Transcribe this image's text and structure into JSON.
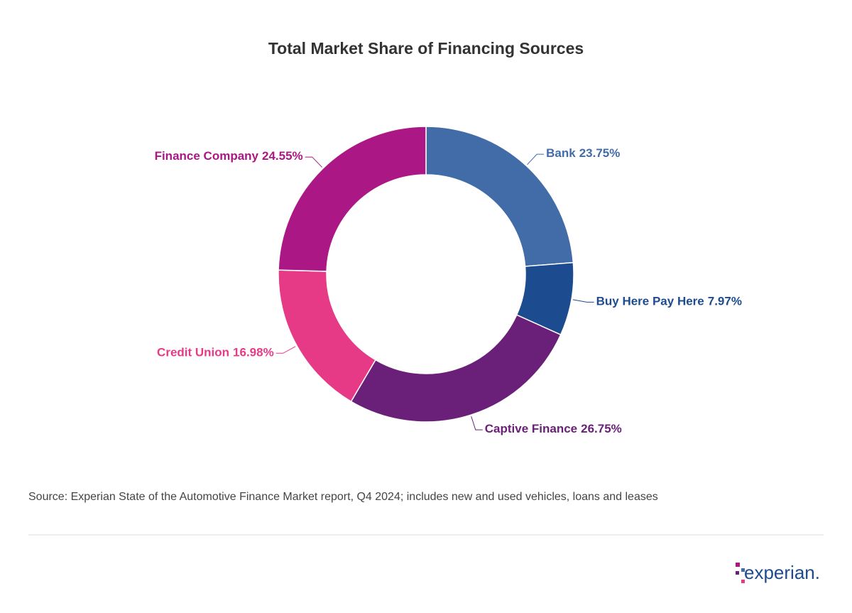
{
  "chart_data": {
    "type": "pie",
    "title": "Total Market Share of Financing Sources",
    "categories": [
      "Bank",
      "Buy Here Pay Here",
      "Captive Finance",
      "Credit Union",
      "Finance Company"
    ],
    "values": [
      23.75,
      7.97,
      26.75,
      16.98,
      24.55
    ],
    "value_labels": [
      "23.75%",
      "7.97%",
      "26.75%",
      "16.98%",
      "24.55%"
    ],
    "colors": [
      "#416ca8",
      "#1d4b8f",
      "#6a1f78",
      "#e63a87",
      "#ab1784"
    ],
    "source": "Source: Experian State of the Automotive Finance Market report, Q4 2024; includes new and used vehicles, loans and leases"
  },
  "logo": "experian."
}
